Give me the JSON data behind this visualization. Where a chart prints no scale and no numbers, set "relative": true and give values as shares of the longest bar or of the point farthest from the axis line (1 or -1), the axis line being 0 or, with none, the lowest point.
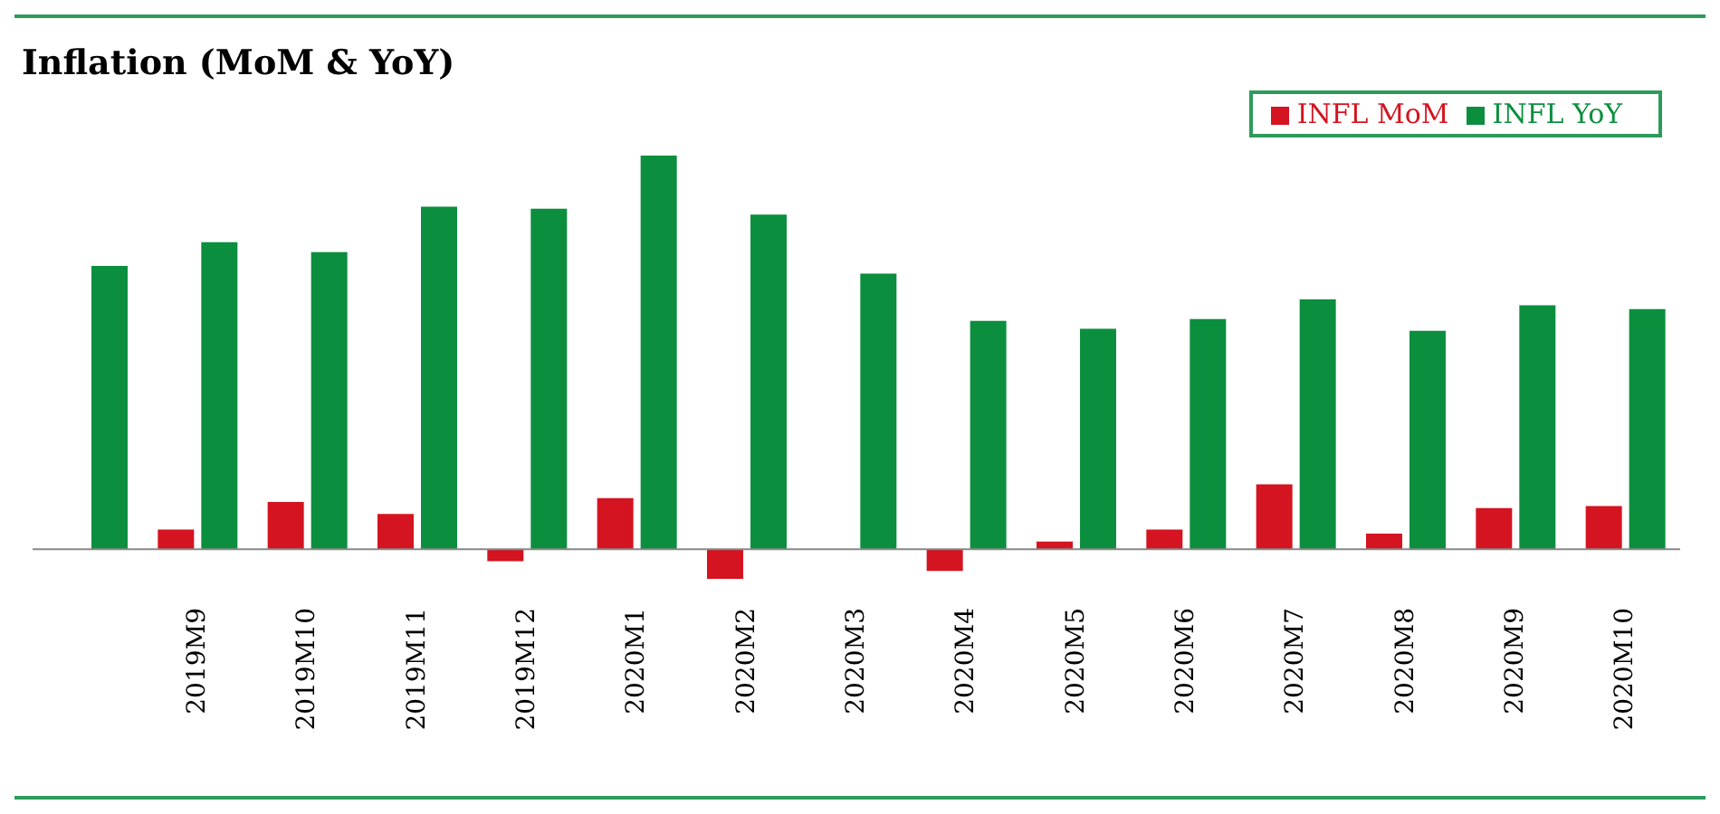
{
  "chart_data": {
    "type": "bar",
    "title": "Inflation (MoM & YoY)",
    "relative": true,
    "legend": "top right",
    "categories": [
      null,
      "2019M9",
      "2019M10",
      "2019M11",
      "2019M12",
      "2020M1",
      "2020M2",
      "2020M3",
      "2020M4",
      "2020M5",
      "2020M6",
      "2020M7",
      "2020M8",
      "2020M9",
      "2020M10"
    ],
    "series": [
      {
        "name": "INFL MoM",
        "color": "#d41420",
        "values": [
          null,
          0.05,
          0.12,
          0.09,
          -0.03,
          0.13,
          -0.075,
          0,
          -0.055,
          0.02,
          0.05,
          0.165,
          0.04,
          0.105,
          0.11
        ]
      },
      {
        "name": "INFL YoY",
        "color": "#0b8f3e",
        "values": [
          0.72,
          0.78,
          0.755,
          0.87,
          0.865,
          1,
          0.85,
          0.7,
          0.58,
          0.56,
          0.585,
          0.635,
          0.555,
          0.62,
          0.61
        ]
      }
    ]
  }
}
